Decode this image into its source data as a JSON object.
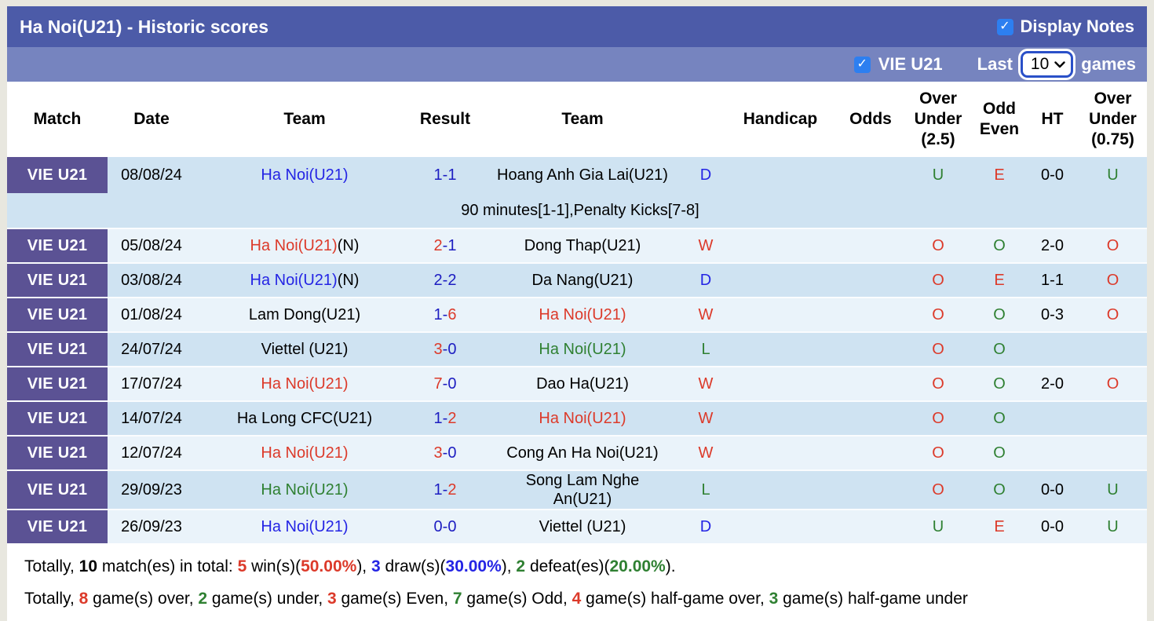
{
  "title_bar": {
    "title": "Ha Noi(U21) - Historic scores",
    "display_notes_label": "Display Notes",
    "display_notes_checked": true
  },
  "filter_bar": {
    "team_checkbox_label": "VIE U21",
    "team_checkbox_checked": true,
    "last_label": "Last",
    "selected_count": "10",
    "games_label": "games"
  },
  "table": {
    "score_separator": "-",
    "columns": [
      "Match",
      "Date",
      "Team",
      "Result",
      "Team",
      "",
      "Handicap",
      "Odds",
      "Over\nUnder\n(2.5)",
      "Odd\nEven",
      "HT",
      "Over\nUnder\n(0.75)"
    ],
    "rows": [
      {
        "match": "VIE U21",
        "date": "08/08/24",
        "home_team": "Ha Noi(U21)",
        "home_suffix": "",
        "home_color": "blue",
        "score_home": "1",
        "score_away": "1",
        "score_home_color": "navy",
        "score_away_color": "navy",
        "away_team": "Hoang Anh Gia Lai(U21)",
        "away_color": "black",
        "wdl": "D",
        "wdl_color": "blue",
        "handicap": "",
        "odds": "",
        "ou25": "U",
        "ou25_color": "green",
        "odd_even": "E",
        "odd_even_color": "red",
        "ht": "0-0",
        "ou075": "U",
        "ou075_color": "green",
        "note": "90 minutes[1-1],Penalty Kicks[7-8]"
      },
      {
        "match": "VIE U21",
        "date": "05/08/24",
        "home_team": "Ha Noi(U21)",
        "home_suffix": "(N)",
        "home_color": "red",
        "score_home": "2",
        "score_away": "1",
        "score_home_color": "red",
        "score_away_color": "navy",
        "away_team": "Dong Thap(U21)",
        "away_color": "black",
        "wdl": "W",
        "wdl_color": "red",
        "handicap": "",
        "odds": "",
        "ou25": "O",
        "ou25_color": "red",
        "odd_even": "O",
        "odd_even_color": "green",
        "ht": "2-0",
        "ou075": "O",
        "ou075_color": "red",
        "note": ""
      },
      {
        "match": "VIE U21",
        "date": "03/08/24",
        "home_team": "Ha Noi(U21)",
        "home_suffix": "(N)",
        "home_color": "blue",
        "score_home": "2",
        "score_away": "2",
        "score_home_color": "navy",
        "score_away_color": "navy",
        "away_team": "Da Nang(U21)",
        "away_color": "black",
        "wdl": "D",
        "wdl_color": "blue",
        "handicap": "",
        "odds": "",
        "ou25": "O",
        "ou25_color": "red",
        "odd_even": "E",
        "odd_even_color": "red",
        "ht": "1-1",
        "ou075": "O",
        "ou075_color": "red",
        "note": ""
      },
      {
        "match": "VIE U21",
        "date": "01/08/24",
        "home_team": "Lam Dong(U21)",
        "home_suffix": "",
        "home_color": "black",
        "score_home": "1",
        "score_away": "6",
        "score_home_color": "navy",
        "score_away_color": "red",
        "away_team": "Ha Noi(U21)",
        "away_color": "red",
        "wdl": "W",
        "wdl_color": "red",
        "handicap": "",
        "odds": "",
        "ou25": "O",
        "ou25_color": "red",
        "odd_even": "O",
        "odd_even_color": "green",
        "ht": "0-3",
        "ou075": "O",
        "ou075_color": "red",
        "note": ""
      },
      {
        "match": "VIE U21",
        "date": "24/07/24",
        "home_team": "Viettel (U21)",
        "home_suffix": "",
        "home_color": "black",
        "score_home": "3",
        "score_away": "0",
        "score_home_color": "red",
        "score_away_color": "navy",
        "away_team": "Ha Noi(U21)",
        "away_color": "green",
        "wdl": "L",
        "wdl_color": "green",
        "handicap": "",
        "odds": "",
        "ou25": "O",
        "ou25_color": "red",
        "odd_even": "O",
        "odd_even_color": "green",
        "ht": "",
        "ou075": "",
        "ou075_color": "black",
        "note": ""
      },
      {
        "match": "VIE U21",
        "date": "17/07/24",
        "home_team": "Ha Noi(U21)",
        "home_suffix": "",
        "home_color": "red",
        "score_home": "7",
        "score_away": "0",
        "score_home_color": "red",
        "score_away_color": "navy",
        "away_team": "Dao Ha(U21)",
        "away_color": "black",
        "wdl": "W",
        "wdl_color": "red",
        "handicap": "",
        "odds": "",
        "ou25": "O",
        "ou25_color": "red",
        "odd_even": "O",
        "odd_even_color": "green",
        "ht": "2-0",
        "ou075": "O",
        "ou075_color": "red",
        "note": ""
      },
      {
        "match": "VIE U21",
        "date": "14/07/24",
        "home_team": "Ha Long CFC(U21)",
        "home_suffix": "",
        "home_color": "black",
        "score_home": "1",
        "score_away": "2",
        "score_home_color": "navy",
        "score_away_color": "red",
        "away_team": "Ha Noi(U21)",
        "away_color": "red",
        "wdl": "W",
        "wdl_color": "red",
        "handicap": "",
        "odds": "",
        "ou25": "O",
        "ou25_color": "red",
        "odd_even": "O",
        "odd_even_color": "green",
        "ht": "",
        "ou075": "",
        "ou075_color": "black",
        "note": ""
      },
      {
        "match": "VIE U21",
        "date": "12/07/24",
        "home_team": "Ha Noi(U21)",
        "home_suffix": "",
        "home_color": "red",
        "score_home": "3",
        "score_away": "0",
        "score_home_color": "red",
        "score_away_color": "navy",
        "away_team": "Cong An Ha Noi(U21)",
        "away_color": "black",
        "wdl": "W",
        "wdl_color": "red",
        "handicap": "",
        "odds": "",
        "ou25": "O",
        "ou25_color": "red",
        "odd_even": "O",
        "odd_even_color": "green",
        "ht": "",
        "ou075": "",
        "ou075_color": "black",
        "note": ""
      },
      {
        "match": "VIE U21",
        "date": "29/09/23",
        "home_team": "Ha Noi(U21)",
        "home_suffix": "",
        "home_color": "green",
        "score_home": "1",
        "score_away": "2",
        "score_home_color": "navy",
        "score_away_color": "red",
        "away_team": "Song Lam Nghe\nAn(U21)",
        "away_color": "black",
        "wdl": "L",
        "wdl_color": "green",
        "handicap": "",
        "odds": "",
        "ou25": "O",
        "ou25_color": "red",
        "odd_even": "O",
        "odd_even_color": "green",
        "ht": "0-0",
        "ou075": "U",
        "ou075_color": "green",
        "note": ""
      },
      {
        "match": "VIE U21",
        "date": "26/09/23",
        "home_team": "Ha Noi(U21)",
        "home_suffix": "",
        "home_color": "blue",
        "score_home": "0",
        "score_away": "0",
        "score_home_color": "navy",
        "score_away_color": "navy",
        "away_team": "Viettel (U21)",
        "away_color": "black",
        "wdl": "D",
        "wdl_color": "blue",
        "handicap": "",
        "odds": "",
        "ou25": "U",
        "ou25_color": "green",
        "odd_even": "E",
        "odd_even_color": "red",
        "ht": "0-0",
        "ou075": "U",
        "ou075_color": "green",
        "note": ""
      }
    ]
  },
  "summary_lines": [
    {
      "segments": [
        {
          "text": "Totally, "
        },
        {
          "text": "10",
          "bold": true
        },
        {
          "text": " match(es) in total: "
        },
        {
          "text": "5",
          "color": "red",
          "bold": true
        },
        {
          "text": " win(s)("
        },
        {
          "text": "50.00%",
          "color": "red",
          "bold": true
        },
        {
          "text": "), "
        },
        {
          "text": "3",
          "color": "blue",
          "bold": true
        },
        {
          "text": " draw(s)("
        },
        {
          "text": "30.00%",
          "color": "blue",
          "bold": true
        },
        {
          "text": "), "
        },
        {
          "text": "2",
          "color": "green",
          "bold": true
        },
        {
          "text": " defeat(es)("
        },
        {
          "text": "20.00%",
          "color": "green",
          "bold": true
        },
        {
          "text": ")."
        }
      ]
    },
    {
      "segments": [
        {
          "text": "Totally, "
        },
        {
          "text": "8",
          "color": "red",
          "bold": true
        },
        {
          "text": " game(s) over, "
        },
        {
          "text": "2",
          "color": "green",
          "bold": true
        },
        {
          "text": " game(s) under, "
        },
        {
          "text": "3",
          "color": "red",
          "bold": true
        },
        {
          "text": " game(s) Even, "
        },
        {
          "text": "7",
          "color": "green",
          "bold": true
        },
        {
          "text": " game(s) Odd, "
        },
        {
          "text": "4",
          "color": "red",
          "bold": true
        },
        {
          "text": " game(s) half-game over, "
        },
        {
          "text": "3",
          "color": "green",
          "bold": true
        },
        {
          "text": " game(s) half-game under"
        }
      ]
    }
  ],
  "colors": {
    "red": "#dc3a2a",
    "navy": "#1d1dc1",
    "blue": "#2424e4",
    "green": "#2f8032",
    "black": "#000000",
    "header_bar": "#4c5ba8",
    "filter_bar": "#7684bf",
    "badge_purple": "#5b5294",
    "row_dark": "#cfe3f2",
    "row_light": "#eaf3fa",
    "checkbox_blue": "#2d7ff0",
    "select_border": "#2a50c8"
  }
}
